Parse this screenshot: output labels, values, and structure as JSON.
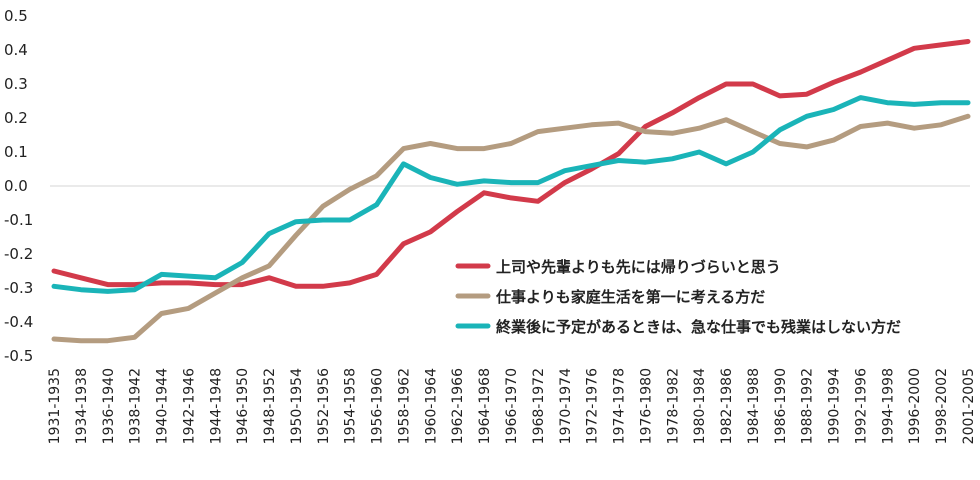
{
  "chart_data": {
    "type": "line",
    "title": "",
    "xlabel": "",
    "ylabel": "",
    "ylim": [
      -0.5,
      0.5
    ],
    "yticks": [
      "0.5",
      "0.4",
      "0.3",
      "0.2",
      "0.1",
      "0.0",
      "-0.1",
      "-0.2",
      "-0.3",
      "-0.4",
      "-0.5"
    ],
    "ytick_values": [
      0.5,
      0.4,
      0.3,
      0.2,
      0.1,
      0.0,
      -0.1,
      -0.2,
      -0.3,
      -0.4,
      -0.5
    ],
    "categories": [
      "1931-1935",
      "1934-1938",
      "1936-1940",
      "1938-1942",
      "1940-1944",
      "1942-1946",
      "1944-1948",
      "1946-1950",
      "1948-1952",
      "1950-1954",
      "1952-1956",
      "1954-1958",
      "1956-1960",
      "1958-1962",
      "1960-1964",
      "1962-1966",
      "1964-1968",
      "1966-1970",
      "1968-1972",
      "1970-1974",
      "1972-1976",
      "1974-1978",
      "1976-1980",
      "1978-1982",
      "1980-1984",
      "1982-1986",
      "1984-1988",
      "1986-1990",
      "1988-1992",
      "1990-1994",
      "1992-1996",
      "1994-1998",
      "1996-2000",
      "1998-2002",
      "2001-2005"
    ],
    "grid": "zero-line-only",
    "legend_position": "inside-lower-right",
    "series": [
      {
        "name": "上司や先輩よりも先には帰りづらいと思う",
        "color": "#d23a4a",
        "values": [
          -0.25,
          -0.27,
          -0.29,
          -0.29,
          -0.285,
          -0.285,
          -0.29,
          -0.29,
          -0.27,
          -0.295,
          -0.295,
          -0.285,
          -0.26,
          -0.17,
          -0.135,
          -0.075,
          -0.02,
          -0.035,
          -0.045,
          0.01,
          0.05,
          0.095,
          0.175,
          0.215,
          0.26,
          0.3,
          0.3,
          0.265,
          0.27,
          0.305,
          0.335,
          0.37,
          0.405,
          0.415,
          0.425
        ]
      },
      {
        "name": "仕事よりも家庭生活を第一に考える方だ",
        "color": "#b49c80",
        "values": [
          -0.45,
          -0.455,
          -0.455,
          -0.445,
          -0.375,
          -0.36,
          -0.315,
          -0.27,
          -0.235,
          -0.145,
          -0.06,
          -0.01,
          0.03,
          0.11,
          0.125,
          0.11,
          0.11,
          0.125,
          0.16,
          0.17,
          0.18,
          0.185,
          0.16,
          0.155,
          0.17,
          0.195,
          0.16,
          0.125,
          0.115,
          0.135,
          0.175,
          0.185,
          0.17,
          0.18,
          0.205
        ]
      },
      {
        "name": "終業後に予定があるときは、急な仕事でも残業はしない方だ",
        "color": "#1ab4b8",
        "values": [
          -0.295,
          -0.305,
          -0.31,
          -0.305,
          -0.26,
          -0.265,
          -0.27,
          -0.225,
          -0.14,
          -0.105,
          -0.1,
          -0.1,
          -0.055,
          0.065,
          0.025,
          0.005,
          0.015,
          0.01,
          0.01,
          0.045,
          0.06,
          0.075,
          0.07,
          0.08,
          0.1,
          0.065,
          0.1,
          0.165,
          0.205,
          0.225,
          0.26,
          0.245,
          0.24,
          0.245,
          0.245
        ]
      }
    ]
  }
}
